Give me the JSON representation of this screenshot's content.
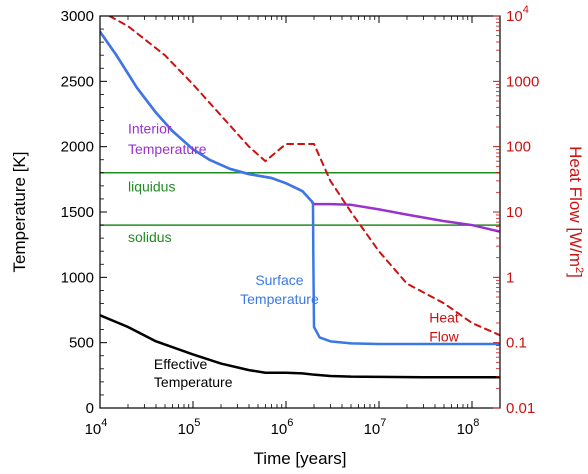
{
  "chart_data": {
    "type": "line",
    "title": "",
    "xlabel": "Time [years]",
    "ylabel_left": "Temperature [K]",
    "ylabel_right": "Heat Flow [W/m",
    "ylabel_right_sup": "2",
    "ylabel_right_close": "]",
    "x_scale": "log",
    "xlim": [
      10000,
      200000000
    ],
    "ylim_left": [
      0,
      3000
    ],
    "y_right_scale": "log",
    "ylim_right": [
      0.01,
      10000
    ],
    "grid": false,
    "legend": "none",
    "x_ticks": [
      {
        "value": 10000,
        "base": "10",
        "exp": "4"
      },
      {
        "value": 100000,
        "base": "10",
        "exp": "5"
      },
      {
        "value": 1000000,
        "base": "10",
        "exp": "6"
      },
      {
        "value": 10000000,
        "base": "10",
        "exp": "7"
      },
      {
        "value": 100000000,
        "base": "10",
        "exp": "8"
      }
    ],
    "y_left_ticks": [
      {
        "value": 0,
        "label": "0"
      },
      {
        "value": 500,
        "label": "500"
      },
      {
        "value": 1000,
        "label": "1000"
      },
      {
        "value": 1500,
        "label": "1500"
      },
      {
        "value": 2000,
        "label": "2000"
      },
      {
        "value": 2500,
        "label": "2500"
      },
      {
        "value": 3000,
        "label": "3000"
      }
    ],
    "y_right_ticks": [
      {
        "value": 0.01,
        "label": "0.01"
      },
      {
        "value": 0.1,
        "label": "0.1"
      },
      {
        "value": 1,
        "label": "1"
      },
      {
        "value": 10,
        "label": "10"
      },
      {
        "value": 100,
        "label": "100"
      },
      {
        "value": 1000,
        "label": "1000"
      },
      {
        "value": 10000,
        "label": "10",
        "exp": "4"
      }
    ],
    "hlines": [
      {
        "name": "liquidus",
        "y": 1800,
        "color": "#228b22"
      },
      {
        "name": "solidus",
        "y": 1400,
        "color": "#228b22"
      }
    ],
    "series": [
      {
        "key": "interior",
        "axis": "left",
        "color": "#9932cc",
        "style": "solid",
        "x": [
          10000,
          15000,
          25000,
          40000,
          60000,
          100000,
          150000,
          250000,
          400000,
          700000,
          1000000,
          1500000,
          1900000,
          2000000,
          3000000,
          5000000,
          10000000,
          20000000,
          50000000,
          100000000,
          200000000
        ],
        "y": [
          2880,
          2700,
          2450,
          2260,
          2120,
          1980,
          1900,
          1830,
          1790,
          1760,
          1720,
          1660,
          1580,
          1560,
          1560,
          1555,
          1520,
          1480,
          1430,
          1400,
          1350
        ]
      },
      {
        "key": "surface",
        "axis": "left",
        "color": "#3a78e6",
        "style": "solid",
        "x": [
          10000,
          15000,
          25000,
          40000,
          60000,
          100000,
          150000,
          250000,
          400000,
          700000,
          1000000,
          1500000,
          1900000,
          1950000,
          1970000,
          2000000,
          2300000,
          3000000,
          5000000,
          10000000,
          30000000,
          100000000,
          200000000
        ],
        "y": [
          2880,
          2700,
          2450,
          2260,
          2120,
          1980,
          1900,
          1830,
          1790,
          1760,
          1720,
          1660,
          1580,
          1560,
          1100,
          620,
          540,
          510,
          495,
          490,
          490,
          490,
          490
        ]
      },
      {
        "key": "effective",
        "axis": "left",
        "color": "#000000",
        "style": "solid",
        "x": [
          10000,
          20000,
          40000,
          100000,
          200000,
          400000,
          600000,
          1000000,
          1500000,
          2000000,
          3000000,
          5000000,
          10000000,
          30000000,
          100000000,
          200000000
        ],
        "y": [
          710,
          620,
          510,
          410,
          340,
          290,
          270,
          270,
          265,
          255,
          245,
          240,
          238,
          235,
          235,
          235
        ]
      },
      {
        "key": "heatflow",
        "axis": "right",
        "color": "#cc1111",
        "style": "dashed",
        "x": [
          10000,
          20000,
          50000,
          100000,
          200000,
          400000,
          600000,
          1000000,
          2000000,
          3000000,
          5000000,
          10000000,
          20000000,
          50000000,
          100000000,
          200000000
        ],
        "y": [
          12000,
          7000,
          2500,
          900,
          300,
          100,
          60,
          110,
          110,
          30,
          10,
          2.5,
          0.8,
          0.4,
          0.2,
          0.13
        ]
      }
    ],
    "annotations": [
      {
        "key": "interior1",
        "text": "Interior",
        "color": "#9932cc",
        "x": 20000,
        "y": 2100,
        "axis": "left"
      },
      {
        "key": "interior2",
        "text": "Temperature",
        "color": "#9932cc",
        "x": 20000,
        "y": 1945,
        "axis": "left"
      },
      {
        "key": "liquidus",
        "text": "liquidus",
        "color": "#228b22",
        "x": 20000,
        "y": 1655,
        "axis": "left"
      },
      {
        "key": "solidus",
        "text": "solidus",
        "color": "#228b22",
        "x": 20000,
        "y": 1270,
        "axis": "left"
      },
      {
        "key": "surface1",
        "text": "Surface",
        "color": "#3a78e6",
        "x": 850000,
        "y": 940,
        "axis": "left",
        "anchor": "middle"
      },
      {
        "key": "surface2",
        "text": "Temperature",
        "color": "#3a78e6",
        "x": 850000,
        "y": 795,
        "axis": "left",
        "anchor": "middle"
      },
      {
        "key": "heat1",
        "text": "Heat",
        "color": "#cc1111",
        "x": 50000000,
        "y": 655,
        "axis": "left",
        "anchor": "middle"
      },
      {
        "key": "heat2",
        "text": "Flow",
        "color": "#cc1111",
        "x": 50000000,
        "y": 510,
        "axis": "left",
        "anchor": "middle"
      },
      {
        "key": "effective1",
        "text": "Effective",
        "color": "#000000",
        "x": 38000,
        "y": 300,
        "axis": "left"
      },
      {
        "key": "effective2",
        "text": "Temperature",
        "color": "#000000",
        "x": 38000,
        "y": 160,
        "axis": "left"
      }
    ],
    "colors": {
      "axis": "#000000",
      "right_axis": "#cc1111"
    }
  }
}
